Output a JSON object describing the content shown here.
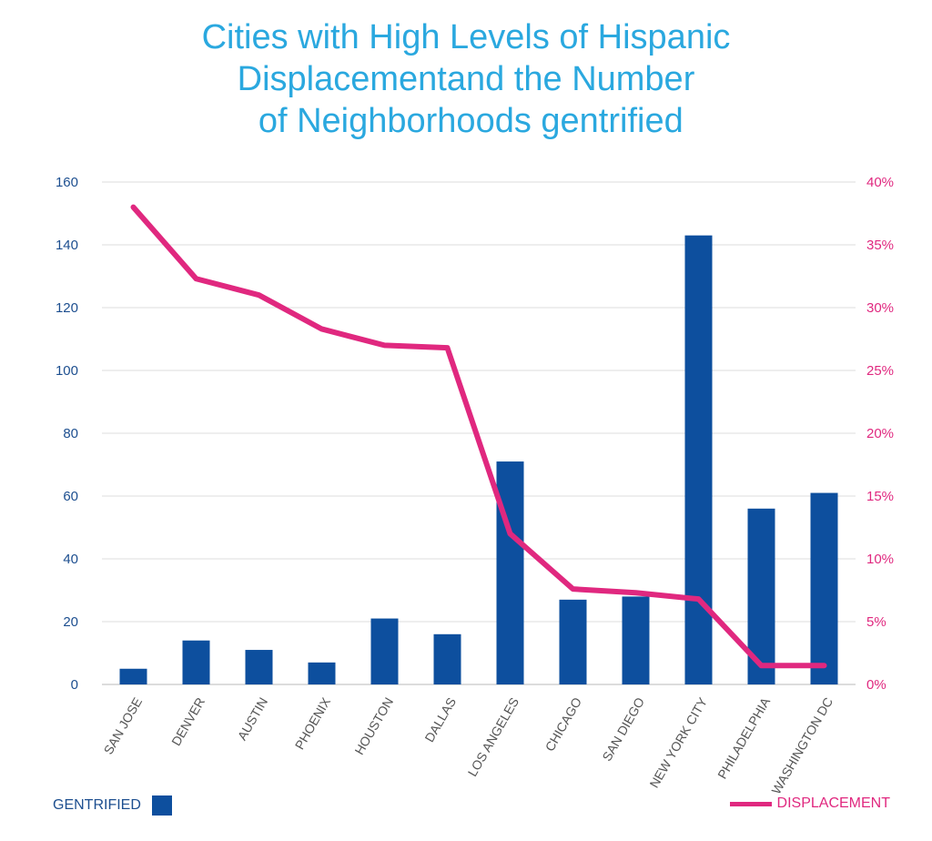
{
  "title_lines": [
    "Cities with High Levels of Hispanic",
    "Displacementand the Number",
    " of Neighborhoods gentrified"
  ],
  "colors": {
    "title": "#2aa8df",
    "bars": "#0d4f9e",
    "line": "#e0287f",
    "left_axis": "#1c4e8f",
    "right_axis": "#e0287f",
    "grid": "#dcdcdc"
  },
  "legend": {
    "bars": "GENTRIFIED",
    "line": "DISPLACEMENT"
  },
  "chart_data": {
    "type": "bar+line",
    "categories": [
      "SAN JOSE",
      "DENVER",
      "AUSTIN",
      "PHOENIX",
      "HOUSTON",
      "DALLAS",
      "LOS ANGELES",
      "CHICAGO",
      "SAN DIEGO",
      "NEW YORK CITY",
      "PHILADELPHIA",
      "WASHINGTON DC"
    ],
    "series": [
      {
        "name": "GENTRIFIED",
        "type": "bar",
        "axis": "left",
        "values": [
          5,
          14,
          11,
          7,
          21,
          16,
          71,
          27,
          28,
          143,
          56,
          61
        ]
      },
      {
        "name": "DISPLACEMENT",
        "type": "line",
        "axis": "right",
        "values": [
          38,
          32.3,
          31,
          28.3,
          27,
          26.8,
          12,
          7.6,
          7.3,
          6.8,
          1.5,
          1.5
        ]
      }
    ],
    "left_axis": {
      "ylim": [
        0,
        160
      ],
      "ticks": [
        "0",
        "20",
        "40",
        "60",
        "80",
        "100",
        "120",
        "140",
        "160"
      ]
    },
    "right_axis": {
      "ylim": [
        0,
        40
      ],
      "ticks": [
        "0%",
        "5%",
        "10%",
        "15%",
        "20%",
        "25%",
        "30%",
        "35%",
        "40%"
      ]
    },
    "grid": true,
    "legend_placement": "bottom"
  }
}
